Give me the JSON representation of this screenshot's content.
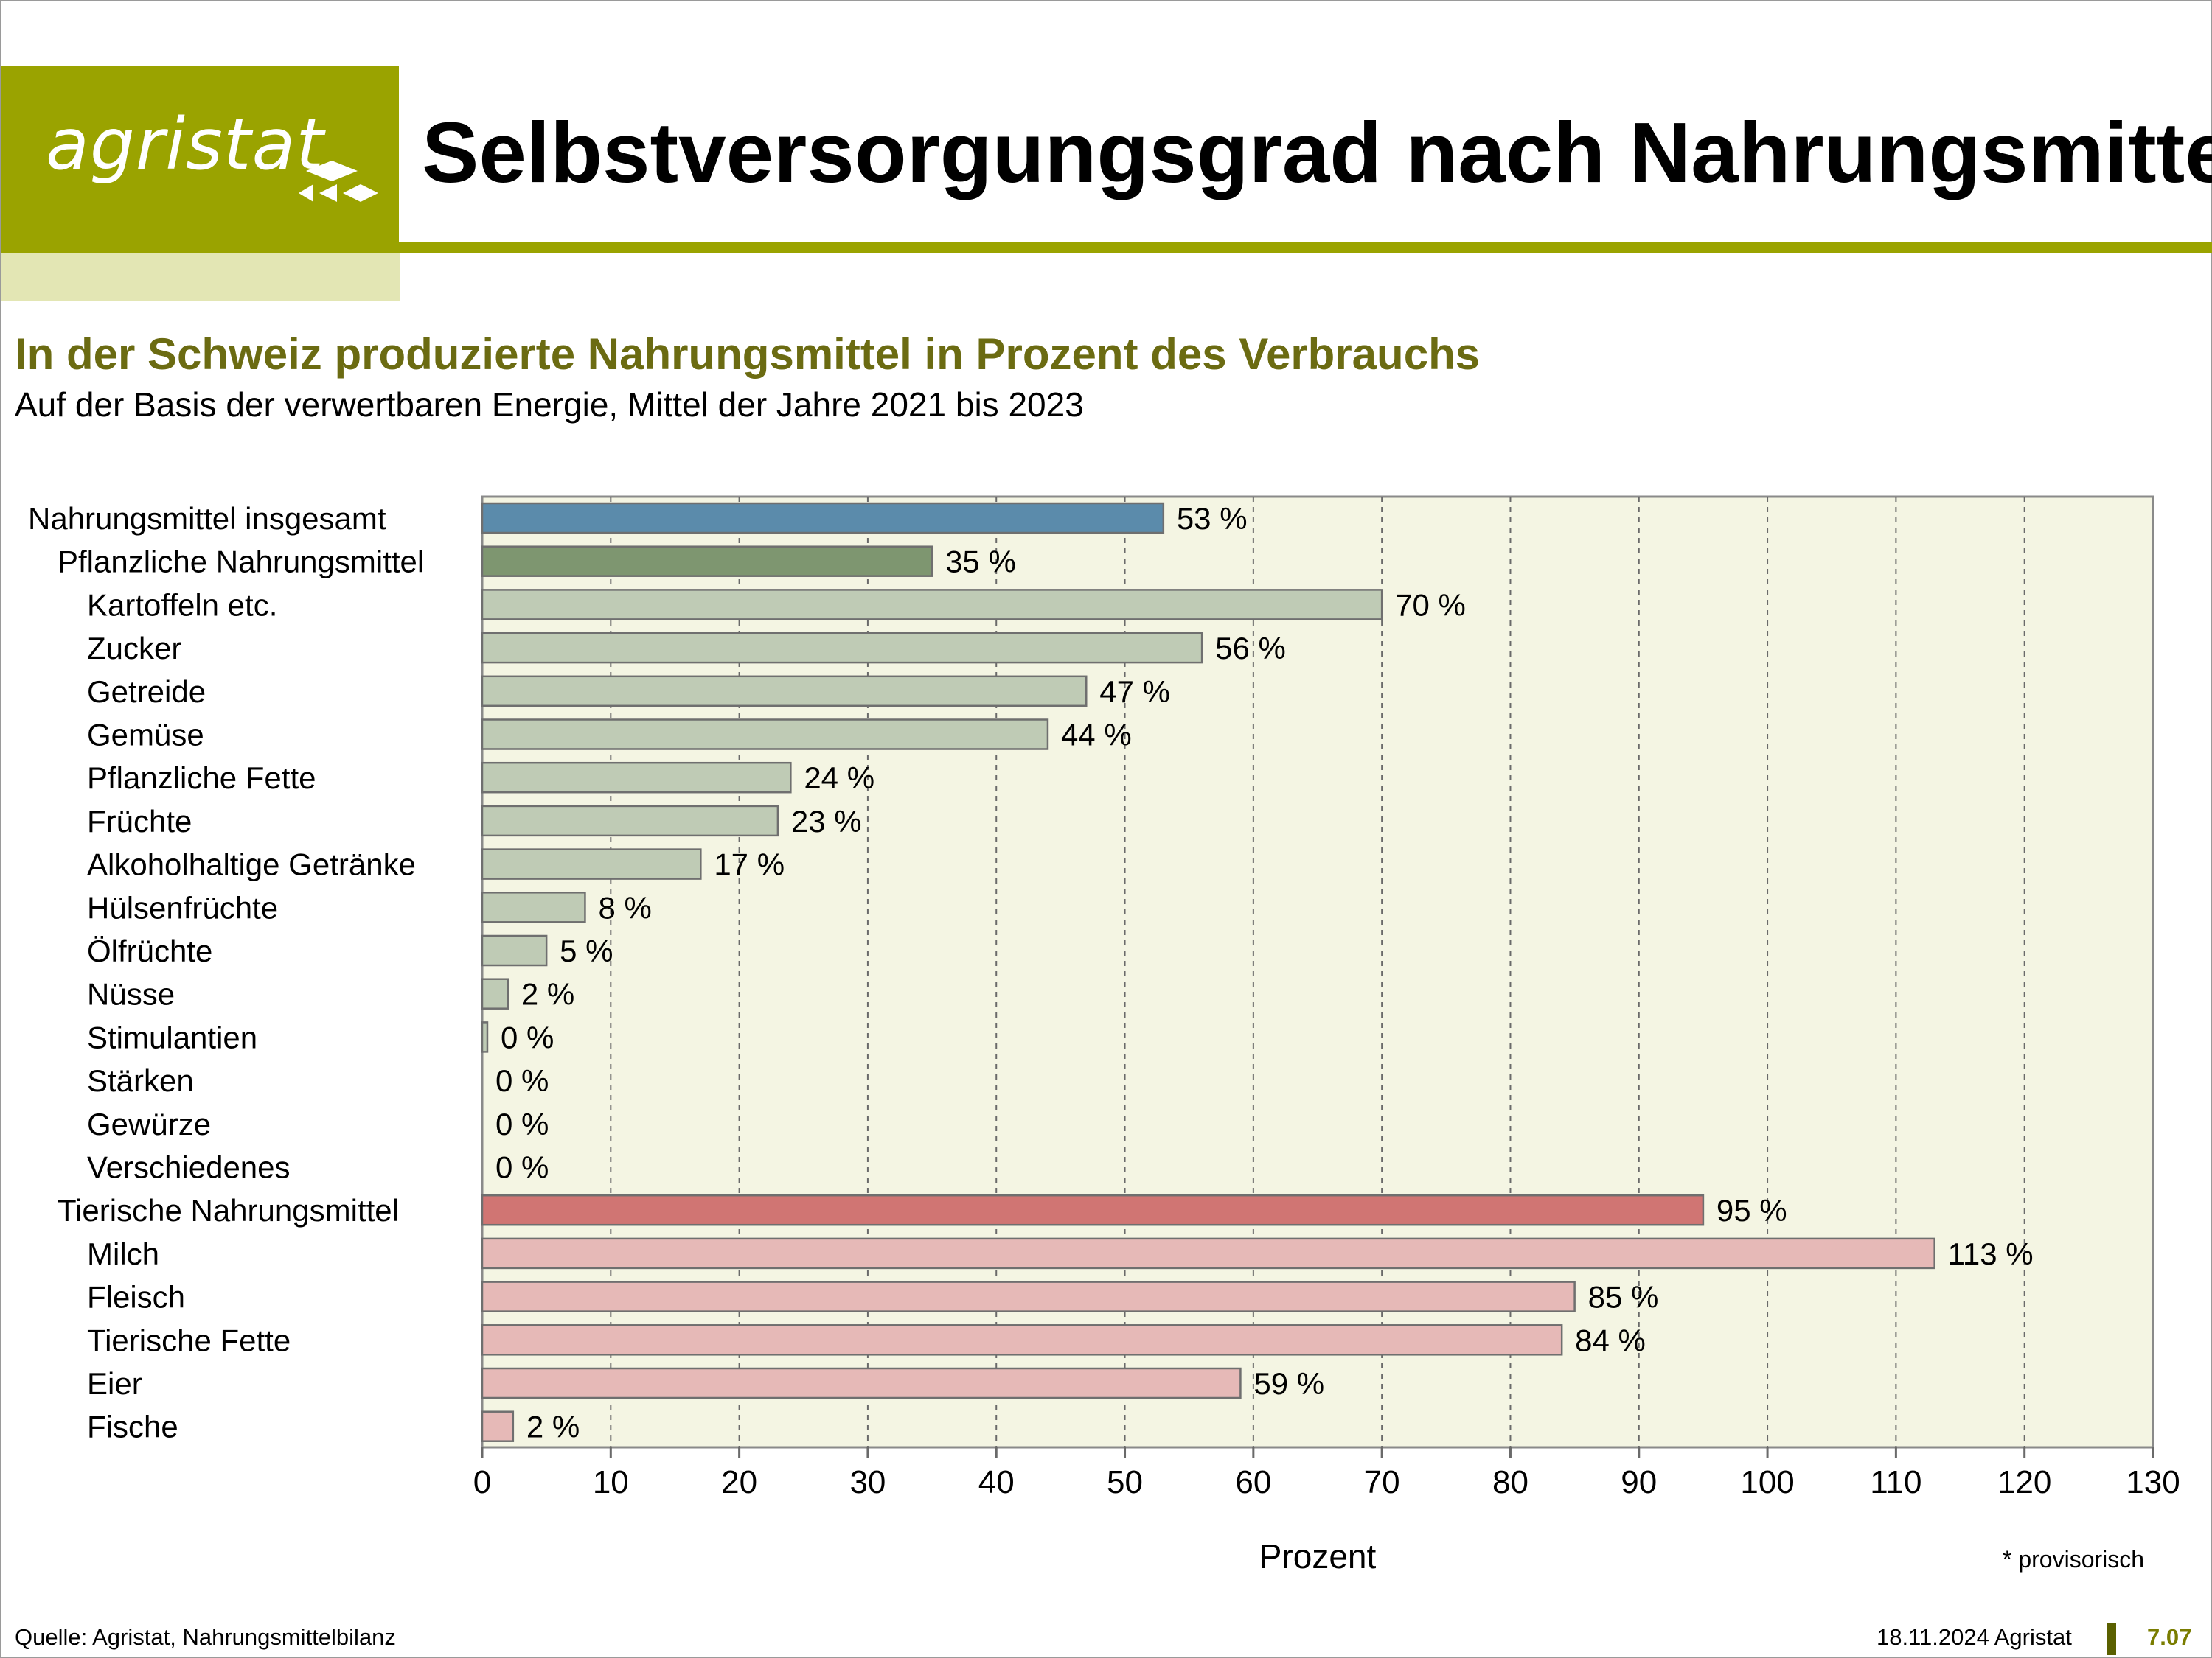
{
  "header": {
    "logo_text": "agristat",
    "title": "Selbstversorgungsgrad nach Nahrungsmittel",
    "subtitle": "In der Schweiz produzierte Nahrungsmittel in Prozent des Verbrauchs",
    "subtitle2": "Auf der Basis der verwertbaren Energie, Mittel der Jahre 2021 bis 2023"
  },
  "colors": {
    "brand": "#9aa300",
    "brand_light": "#e3e6b4",
    "subtitle": "#6b6b12",
    "plot_bg": "#f4f5e3",
    "total": "#5b8bab",
    "plant_total": "#7e9670",
    "plant_item": "#bfcbb5",
    "animal_total": "#d07573",
    "animal_item": "#e6b9b7"
  },
  "chart_data": {
    "type": "bar",
    "orientation": "horizontal",
    "title": "In der Schweiz produzierte Nahrungsmittel in Prozent des Verbrauchs",
    "xlabel": "Prozent",
    "ylabel": "",
    "xlim": [
      0,
      130
    ],
    "xticks": [
      0,
      10,
      20,
      30,
      40,
      50,
      60,
      70,
      80,
      90,
      100,
      110,
      120,
      130
    ],
    "grid": "vertical dashed",
    "categories": [
      "Nahrungsmittel  insgesamt",
      "Pflanzliche Nahrungsmittel",
      "Kartoffeln etc.",
      "Zucker",
      "Getreide",
      "Gemüse",
      "Pflanzliche Fette",
      "Früchte",
      "Alkoholhaltige Getränke",
      "Hülsenfrüchte",
      "Ölfrüchte",
      "Nüsse",
      "Stimulantien",
      "Stärken",
      "Gewürze",
      "Verschiedenes",
      "Tierische Nahrungsmittel",
      "Milch",
      "Fleisch",
      "Tierische Fette",
      "Eier",
      "Fische"
    ],
    "values": [
      53,
      35,
      70,
      56,
      47,
      44,
      24,
      23,
      17,
      8,
      5,
      2,
      0.4,
      0,
      0,
      0,
      95,
      113,
      85,
      84,
      59,
      2.4
    ],
    "data_labels": [
      "53 %",
      "35 %",
      "70 %",
      "56 %",
      "47 %",
      "44 %",
      "24 %",
      "23 %",
      "17 %",
      "8 %",
      "5 %",
      "2 %",
      "0 %",
      "0 %",
      "0 %",
      "0 %",
      "95 %",
      "113 %",
      "85 %",
      "84 %",
      "59 %",
      "2 %"
    ],
    "groups": [
      "total",
      "plant_total",
      "plant_item",
      "plant_item",
      "plant_item",
      "plant_item",
      "plant_item",
      "plant_item",
      "plant_item",
      "plant_item",
      "plant_item",
      "plant_item",
      "plant_item",
      "plant_item",
      "plant_item",
      "plant_item",
      "animal_total",
      "animal_item",
      "animal_item",
      "animal_item",
      "animal_item",
      "animal_item"
    ],
    "indent": [
      0,
      1,
      2,
      2,
      2,
      2,
      2,
      2,
      2,
      2,
      2,
      2,
      2,
      2,
      2,
      2,
      1,
      2,
      2,
      2,
      2,
      2
    ],
    "legend": "none"
  },
  "notes": {
    "provisional": "* provisorisch"
  },
  "footer": {
    "source": "Quelle: Agristat, Nahrungsmittelbilanz",
    "date": "18.11.2024 Agristat",
    "page": "7.07"
  }
}
